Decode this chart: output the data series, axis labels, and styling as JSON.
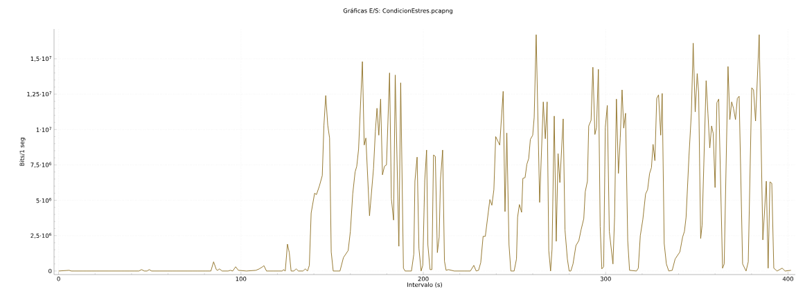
{
  "chart_data": {
    "type": "line",
    "title": "Gráficas E/S: CondicionEstres.pcapng",
    "xlabel": "Intervalo (s)",
    "ylabel": "Bits/1 seg",
    "xlim": [
      -2.5,
      404
    ],
    "ylim": [
      -250000,
      17100000
    ],
    "xticks": [
      0,
      100,
      200,
      300,
      400
    ],
    "yticks": [
      0,
      {
        "value": 2500000,
        "label": "2,5·10$^{6}$"
      },
      {
        "value": 5000000,
        "label": "5·10$^{6}$"
      },
      {
        "value": 7500000,
        "label": "7,5·10$^{6}$"
      },
      {
        "value": 10000000,
        "label": "1·10$^{7}$"
      },
      {
        "value": 12500000,
        "label": "1,25·10$^{7}$"
      },
      {
        "value": 15000000,
        "label": "1,5·10$^{7}$"
      }
    ],
    "grid": true,
    "marker": "none",
    "line_style": "solid",
    "series": [
      {
        "color": "#8c6d1f",
        "x": [
          0,
          5.8,
          7,
          44,
          45.5,
          47,
          48.5,
          49.7,
          51,
          83.5,
          85,
          86.5,
          87.2,
          88.2,
          89.7,
          93,
          94.2,
          95.5,
          97.1,
          98.6,
          103,
          108.2,
          110,
          111.9,
          112.6,
          114,
          122.7,
          123.3,
          124.3,
          125.5,
          126.5,
          127.5,
          129,
          130.3,
          131.5,
          134,
          135.3,
          136.5,
          137.5,
          138.5,
          140.4,
          141.4,
          143,
          144.6,
          145.5,
          146.5,
          147.6,
          148.6,
          149.5,
          150.6,
          154.3,
          156.2,
          158.8,
          160,
          161.3,
          162.6,
          163.5,
          164.5,
          166.6,
          167.6,
          168.5,
          170.5,
          172.7,
          173.7,
          174.6,
          175.6,
          176.6,
          177.6,
          178.7,
          179.8,
          181.5,
          182.5,
          183.7,
          184.6,
          186.6,
          187.6,
          189.1,
          190,
          193.5,
          194.8,
          195.4,
          196.6,
          197.6,
          198.8,
          199.7,
          200.8,
          201.8,
          202.5,
          203.7,
          204.7,
          205.6,
          206.6,
          207.7,
          208.7,
          209.4,
          210.6,
          211.6,
          212.5,
          213.8,
          217,
          225.8,
          227.7,
          229,
          230.3,
          231.5,
          232.8,
          234,
          236.5,
          237.6,
          238.7,
          239.7,
          241.9,
          243.8,
          244.8,
          245.8,
          247,
          248,
          249.8,
          251.1,
          251.7,
          252.7,
          253.9,
          254.6,
          255.8,
          256.8,
          257.8,
          258.7,
          260,
          260.8,
          261.9,
          263.8,
          265.8,
          266.9,
          267.9,
          268.8,
          269.8,
          270.6,
          271.8,
          272.9,
          273.9,
          274.9,
          276.7,
          277.7,
          279,
          280,
          280.9,
          282.1,
          283.7,
          285.3,
          286.5,
          288,
          288.8,
          290,
          290.7,
          292,
          293,
          294.1,
          295,
          296,
          297,
          297.9,
          298.9,
          299.8,
          300.9,
          302,
          304,
          304.9,
          305.9,
          307,
          308,
          309,
          309.9,
          310.9,
          312.1,
          313.1,
          316.9,
          317.9,
          319,
          320.4,
          321.9,
          323,
          324.1,
          325.1,
          326,
          327,
          328,
          329,
          330.2,
          331,
          332.1,
          333.3,
          334.6,
          336.5,
          338.1,
          340.7,
          342.2,
          343.2,
          344.1,
          345.7,
          347,
          348,
          349.1,
          350.2,
          351,
          352.1,
          352.9,
          355.1,
          356.1,
          357.1,
          358.1,
          359,
          360,
          361,
          362,
          364.1,
          365,
          367.1,
          368.1,
          369.1,
          370.1,
          371.2,
          372.2,
          373.2,
          375.1,
          377,
          378.2,
          380.1,
          381.1,
          382.2,
          384.2,
          386.2,
          388.1,
          389.1,
          390.1,
          391.1,
          392.2,
          394,
          396.8,
          398.4,
          401.6
        ],
        "values": [
          0,
          50000,
          0,
          0,
          100000,
          0,
          0,
          100000,
          0,
          0,
          650000,
          100000,
          50000,
          150000,
          0,
          0,
          50000,
          0,
          300000,
          50000,
          0,
          50000,
          150000,
          300000,
          380000,
          0,
          0,
          100000,
          0,
          1900000,
          1300000,
          0,
          0,
          150000,
          0,
          0,
          150000,
          0,
          400000,
          4100000,
          5500000,
          5400000,
          6000000,
          6750000,
          10300000,
          12400000,
          10300000,
          9400000,
          1350000,
          0,
          0,
          950000,
          1450000,
          2800000,
          5450000,
          7000000,
          7400000,
          8600000,
          14800000,
          8900000,
          9400000,
          3900000,
          7250000,
          9850000,
          11500000,
          9600000,
          12150000,
          6800000,
          7400000,
          7500000,
          14000000,
          5100000,
          3600000,
          13850000,
          1750000,
          13300000,
          200000,
          0,
          0,
          1200000,
          6350000,
          8050000,
          1600000,
          0,
          400000,
          6400000,
          8550000,
          1850000,
          100000,
          100000,
          8200000,
          8100000,
          1300000,
          2400000,
          6400000,
          8550000,
          700000,
          50000,
          100000,
          0,
          0,
          400000,
          0,
          50000,
          600000,
          2450000,
          2450000,
          5050000,
          4650000,
          5750000,
          9500000,
          8900000,
          12700000,
          4200000,
          9750000,
          1850000,
          0,
          0,
          850000,
          3800000,
          4700000,
          4150000,
          6550000,
          6600000,
          7550000,
          7950000,
          9300000,
          9600000,
          10850000,
          16700000,
          4850000,
          11950000,
          9350000,
          11950000,
          1450000,
          0,
          1550000,
          10950000,
          2100000,
          8300000,
          6250000,
          10750000,
          2900000,
          850000,
          0,
          0,
          500000,
          1800000,
          2150000,
          2900000,
          3700000,
          5600000,
          6350000,
          10250000,
          10650000,
          14400000,
          9650000,
          10150000,
          14250000,
          3150000,
          150000,
          300000,
          10150000,
          11700000,
          2800000,
          500000,
          3800000,
          12150000,
          6900000,
          9400000,
          12800000,
          10100000,
          11150000,
          2150000,
          50000,
          0,
          200000,
          2500000,
          3650000,
          5450000,
          5750000,
          6900000,
          7300000,
          8950000,
          7800000,
          12200000,
          12450000,
          9600000,
          12550000,
          1950000,
          500000,
          0,
          50000,
          850000,
          1350000,
          2400000,
          2800000,
          3800000,
          8150000,
          11150000,
          16100000,
          11250000,
          13950000,
          12600000,
          2300000,
          3250000,
          13450000,
          11100000,
          8700000,
          10250000,
          9700000,
          5900000,
          11900000,
          12150000,
          200000,
          500000,
          14450000,
          10700000,
          11950000,
          11500000,
          10700000,
          12200000,
          12350000,
          500000,
          0,
          650000,
          12950000,
          12800000,
          10600000,
          16700000,
          2200000,
          6350000,
          200000,
          6300000,
          6200000,
          200000,
          0,
          200000,
          0,
          50000
        ]
      }
    ]
  }
}
